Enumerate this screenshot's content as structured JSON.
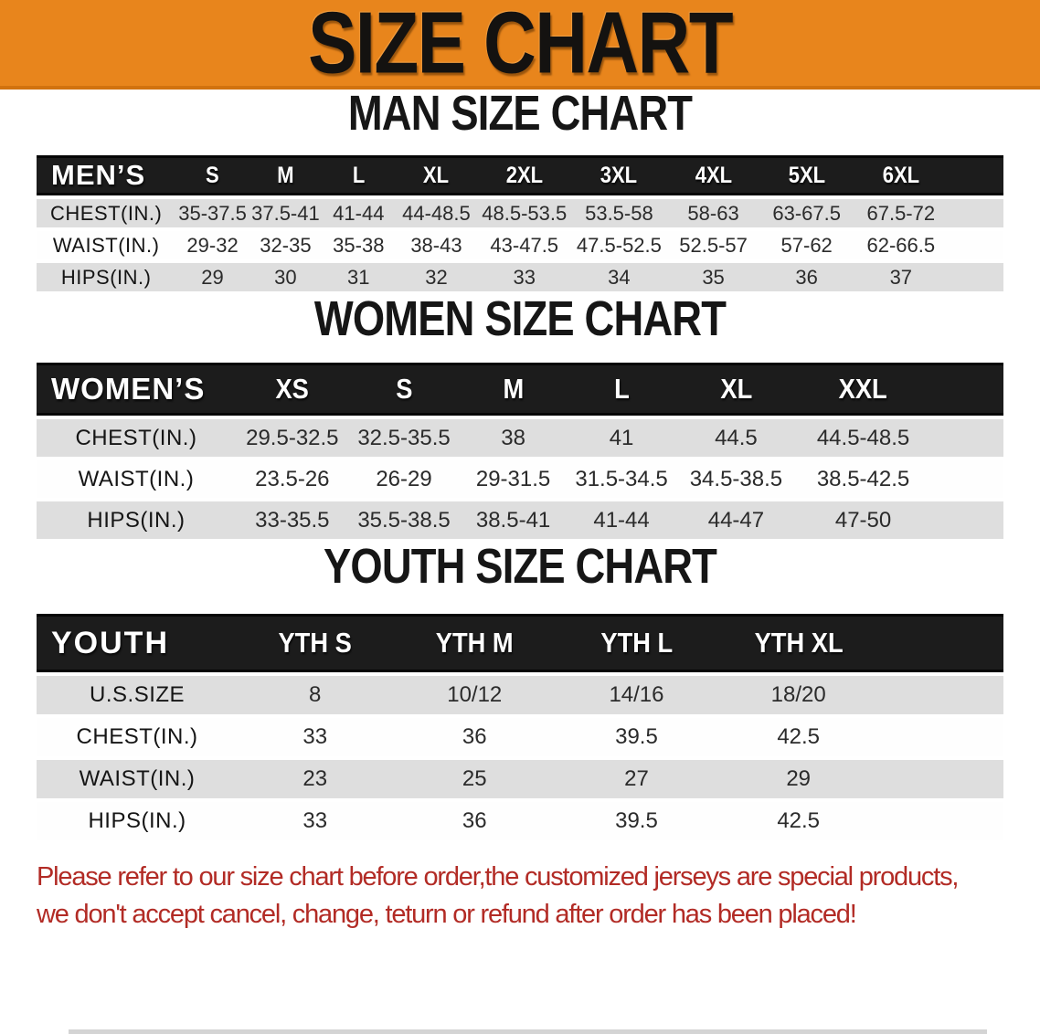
{
  "banner": {
    "title": "SIZE CHART"
  },
  "men_chart": {
    "heading": "MAN SIZE CHART",
    "header_label": "MEN’S",
    "columns": [
      "S",
      "M",
      "L",
      "XL",
      "2XL",
      "3XL",
      "4XL",
      "5XL",
      "6XL"
    ],
    "rows": [
      {
        "label": "CHEST(IN.)",
        "values": [
          "35-37.5",
          "37.5-41",
          "41-44",
          "44-48.5",
          "48.5-53.5",
          "53.5-58",
          "58-63",
          "63-67.5",
          "67.5-72"
        ]
      },
      {
        "label": "WAIST(IN.)",
        "values": [
          "29-32",
          "32-35",
          "35-38",
          "38-43",
          "43-47.5",
          "47.5-52.5",
          "52.5-57",
          "57-62",
          "62-66.5"
        ]
      },
      {
        "label": "HIPS(IN.)",
        "values": [
          "29",
          "30",
          "31",
          "32",
          "33",
          "34",
          "35",
          "36",
          "37"
        ]
      }
    ]
  },
  "women_chart": {
    "heading": "WOMEN SIZE CHART",
    "header_label": "WOMEN’S",
    "columns": [
      "XS",
      "S",
      "M",
      "L",
      "XL",
      "XXL"
    ],
    "rows": [
      {
        "label": "CHEST(IN.)",
        "values": [
          "29.5-32.5",
          "32.5-35.5",
          "38",
          "41",
          "44.5",
          "44.5-48.5"
        ]
      },
      {
        "label": "WAIST(IN.)",
        "values": [
          "23.5-26",
          "26-29",
          "29-31.5",
          "31.5-34.5",
          "34.5-38.5",
          "38.5-42.5"
        ]
      },
      {
        "label": "HIPS(IN.)",
        "values": [
          "33-35.5",
          "35.5-38.5",
          "38.5-41",
          "41-44",
          "44-47",
          "47-50"
        ]
      }
    ]
  },
  "youth_chart": {
    "heading": "YOUTH SIZE CHART",
    "header_label": "YOUTH",
    "columns": [
      "YTH S",
      "YTH M",
      "YTH L",
      "YTH XL"
    ],
    "rows": [
      {
        "label": "U.S.SIZE",
        "values": [
          "8",
          "10/12",
          "14/16",
          "18/20"
        ]
      },
      {
        "label": "CHEST(IN.)",
        "values": [
          "33",
          "36",
          "39.5",
          "42.5"
        ]
      },
      {
        "label": "WAIST(IN.)",
        "values": [
          "23",
          "25",
          "27",
          "29"
        ]
      },
      {
        "label": "HIPS(IN.)",
        "values": [
          "33",
          "36",
          "39.5",
          "42.5"
        ]
      }
    ]
  },
  "disclaimer": {
    "line1": "Please refer to our size chart before order,the customized jerseys are special products,",
    "line2": "we don't accept cancel, change, teturn or refund after order has been placed!"
  },
  "colors": {
    "banner_bg": "#E8851C",
    "banner_border": "#D1720F",
    "table_header_bg": "#1C1C1C",
    "row_gray": "#DEDEDE",
    "row_white": "#FEFEFE",
    "heading_text": "#161616",
    "disclaimer_red": "#B22B25"
  }
}
